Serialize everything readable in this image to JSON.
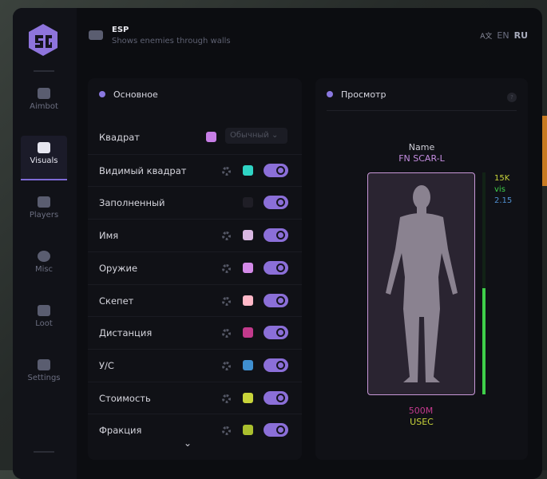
{
  "header": {
    "title": "ESP",
    "subtitle": "Shows enemies through walls",
    "lang_icon": "translate-icon",
    "lang_en": "EN",
    "lang_ru": "RU"
  },
  "sidebar": {
    "items": [
      {
        "label": "Aimbot",
        "icon": "alien-icon"
      },
      {
        "label": "Visuals",
        "icon": "vr-goggles-icon",
        "active": true
      },
      {
        "label": "Players",
        "icon": "users-icon"
      },
      {
        "label": "Misc",
        "icon": "dots-icon"
      },
      {
        "label": "Loot",
        "icon": "toolbox-icon"
      },
      {
        "label": "Settings",
        "icon": "list-icon"
      }
    ]
  },
  "main": {
    "title": "Основное",
    "box_mode": "Обычный",
    "rows": [
      {
        "label": "Квадрат",
        "color": "#c77ee6",
        "gear": false,
        "select": true
      },
      {
        "label": "Видимый квадрат",
        "color": "#2fd4c4",
        "gear": true,
        "on": true
      },
      {
        "label": "Заполненный",
        "color": "#1f1e26",
        "gear": false,
        "on": true
      },
      {
        "label": "Имя",
        "color": "#d9b8e2",
        "gear": true,
        "on": true
      },
      {
        "label": "Оружие",
        "color": "#d48ae8",
        "gear": true,
        "on": true
      },
      {
        "label": "Скепет",
        "color": "#ffb8c8",
        "gear": true,
        "on": true
      },
      {
        "label": "Дистанция",
        "color": "#c23a8c",
        "gear": true,
        "on": true
      },
      {
        "label": "У/С",
        "color": "#3f8fd0",
        "gear": true,
        "on": true
      },
      {
        "label": "Стоимость",
        "color": "#c8d43a",
        "gear": true,
        "on": true
      },
      {
        "label": "Фракция",
        "color": "#aabf2e",
        "gear": true,
        "on": true
      }
    ]
  },
  "preview": {
    "title": "Просмотр",
    "help": "?",
    "name_label": "Name",
    "weapon": "FN SCAR-L",
    "value": "15K",
    "visible": "vis",
    "kd": "2.15",
    "distance": "500M",
    "faction": "USEC",
    "health_fraction": 0.48
  }
}
